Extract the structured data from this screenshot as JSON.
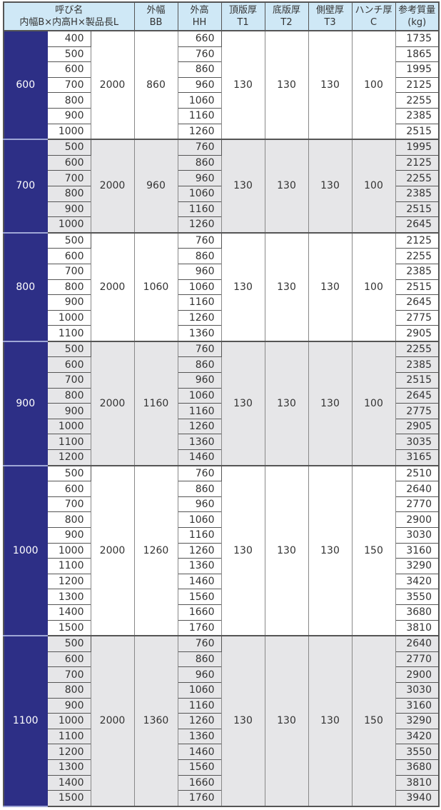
{
  "header": {
    "name_line1": "呼び名",
    "name_line2": "内幅B×内高H×製品長L",
    "bb": [
      "外幅",
      "BB"
    ],
    "hh": [
      "外高",
      "HH"
    ],
    "t1": [
      "頂版厚",
      "T1"
    ],
    "t2": [
      "底版厚",
      "T2"
    ],
    "t3": [
      "側壁厚",
      "T3"
    ],
    "c": [
      "ハンチ厚",
      "C"
    ],
    "kg": [
      "参考質量",
      "(kg)"
    ]
  },
  "colors": {
    "header_bg": "#cfe8f6",
    "name_bg": "#2d2f86",
    "alt_row_bg": "#e6e6e8"
  },
  "groups": [
    {
      "B": "600",
      "L": "2000",
      "BB": "860",
      "T1": "130",
      "T2": "130",
      "T3": "130",
      "C": "100",
      "rows": [
        [
          "400",
          "660",
          "1735"
        ],
        [
          "500",
          "760",
          "1865"
        ],
        [
          "600",
          "860",
          "1995"
        ],
        [
          "700",
          "960",
          "2125"
        ],
        [
          "800",
          "1060",
          "2255"
        ],
        [
          "900",
          "1160",
          "2385"
        ],
        [
          "1000",
          "1260",
          "2515"
        ]
      ]
    },
    {
      "B": "700",
      "L": "2000",
      "BB": "960",
      "T1": "130",
      "T2": "130",
      "T3": "130",
      "C": "100",
      "rows": [
        [
          "500",
          "760",
          "1995"
        ],
        [
          "600",
          "860",
          "2125"
        ],
        [
          "700",
          "960",
          "2255"
        ],
        [
          "800",
          "1060",
          "2385"
        ],
        [
          "900",
          "1160",
          "2515"
        ],
        [
          "1000",
          "1260",
          "2645"
        ]
      ]
    },
    {
      "B": "800",
      "L": "2000",
      "BB": "1060",
      "T1": "130",
      "T2": "130",
      "T3": "130",
      "C": "100",
      "rows": [
        [
          "500",
          "760",
          "2125"
        ],
        [
          "600",
          "860",
          "2255"
        ],
        [
          "700",
          "960",
          "2385"
        ],
        [
          "800",
          "1060",
          "2515"
        ],
        [
          "900",
          "1160",
          "2645"
        ],
        [
          "1000",
          "1260",
          "2775"
        ],
        [
          "1100",
          "1360",
          "2905"
        ]
      ]
    },
    {
      "B": "900",
      "L": "2000",
      "BB": "1160",
      "T1": "130",
      "T2": "130",
      "T3": "130",
      "C": "100",
      "rows": [
        [
          "500",
          "760",
          "2255"
        ],
        [
          "600",
          "860",
          "2385"
        ],
        [
          "700",
          "960",
          "2515"
        ],
        [
          "800",
          "1060",
          "2645"
        ],
        [
          "900",
          "1160",
          "2775"
        ],
        [
          "1000",
          "1260",
          "2905"
        ],
        [
          "1100",
          "1360",
          "3035"
        ],
        [
          "1200",
          "1460",
          "3165"
        ]
      ]
    },
    {
      "B": "1000",
      "L": "2000",
      "BB": "1260",
      "T1": "130",
      "T2": "130",
      "T3": "130",
      "C": "150",
      "rows": [
        [
          "500",
          "760",
          "2510"
        ],
        [
          "600",
          "860",
          "2640"
        ],
        [
          "700",
          "960",
          "2770"
        ],
        [
          "800",
          "1060",
          "2900"
        ],
        [
          "900",
          "1160",
          "3030"
        ],
        [
          "1000",
          "1260",
          "3160"
        ],
        [
          "1100",
          "1360",
          "3290"
        ],
        [
          "1200",
          "1460",
          "3420"
        ],
        [
          "1300",
          "1560",
          "3550"
        ],
        [
          "1400",
          "1660",
          "3680"
        ],
        [
          "1500",
          "1760",
          "3810"
        ]
      ]
    },
    {
      "B": "1100",
      "L": "2000",
      "BB": "1360",
      "T1": "130",
      "T2": "130",
      "T3": "130",
      "C": "150",
      "rows": [
        [
          "500",
          "760",
          "2640"
        ],
        [
          "600",
          "860",
          "2770"
        ],
        [
          "700",
          "960",
          "2900"
        ],
        [
          "800",
          "1060",
          "3030"
        ],
        [
          "900",
          "1160",
          "3160"
        ],
        [
          "1000",
          "1260",
          "3290"
        ],
        [
          "1100",
          "1360",
          "3420"
        ],
        [
          "1200",
          "1460",
          "3550"
        ],
        [
          "1300",
          "1560",
          "3680"
        ],
        [
          "1400",
          "1660",
          "3810"
        ],
        [
          "1500",
          "1760",
          "3940"
        ]
      ]
    }
  ]
}
